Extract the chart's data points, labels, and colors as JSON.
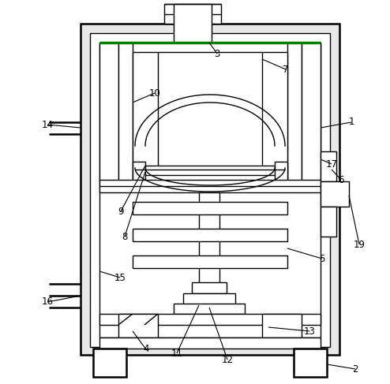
{
  "line_color": "#000000",
  "green_color": "#008000",
  "bg_color": "#ffffff",
  "lw": 1.0,
  "lw2": 1.8,
  "figsize": [
    4.94,
    4.87
  ],
  "dpi": 100
}
